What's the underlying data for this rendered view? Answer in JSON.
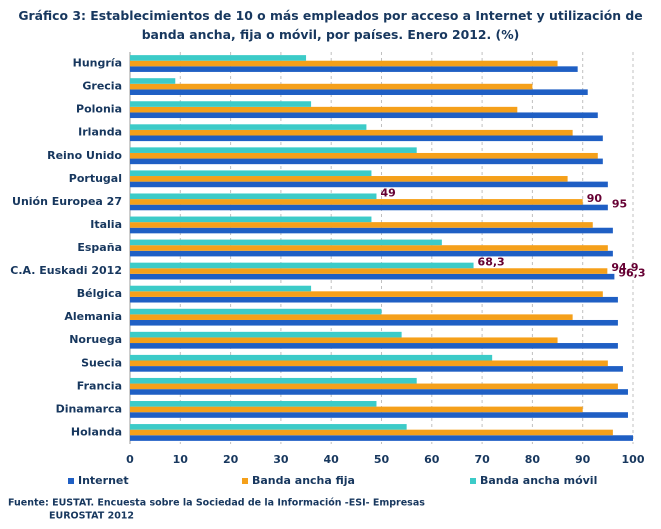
{
  "chart_data": {
    "type": "hbar",
    "title": "Gráfico 3: Establecimientos de 10 o más empleados por acceso a Internet y utilización de banda ancha, fija o móvil, por países. Enero 2012. (%)",
    "categories": [
      "Hungría",
      "Grecia",
      "Polonia",
      "Irlanda",
      "Reino Unido",
      "Portugal",
      "Unión Europea 27",
      "Italia",
      "España",
      "C.A. Euskadi 2012",
      "Bélgica",
      "Alemania",
      "Noruega",
      "Suecia",
      "Francia",
      "Dinamarca",
      "Holanda"
    ],
    "series": [
      {
        "name": "Internet",
        "color": "#1f5fc4",
        "values": [
          89,
          91,
          93,
          94,
          94,
          95,
          95,
          96,
          96,
          96.3,
          97,
          97,
          97,
          98,
          99,
          99,
          100
        ],
        "value_labels": [
          null,
          null,
          null,
          null,
          null,
          null,
          "95",
          null,
          null,
          "96,3",
          null,
          null,
          null,
          null,
          null,
          null,
          null
        ]
      },
      {
        "name": "Banda ancha fija",
        "color": "#f5a01a",
        "values": [
          85,
          80,
          77,
          88,
          93,
          87,
          90,
          92,
          95,
          94.9,
          94,
          88,
          85,
          95,
          97,
          90,
          96
        ],
        "value_labels": [
          null,
          null,
          null,
          null,
          null,
          null,
          "90",
          null,
          null,
          "94,9",
          null,
          null,
          null,
          null,
          null,
          null,
          null
        ]
      },
      {
        "name": "Banda ancha móvil",
        "color": "#3ccbc8",
        "values": [
          35,
          9,
          36,
          47,
          57,
          48,
          49,
          48,
          62,
          68.3,
          36,
          50,
          54,
          72,
          57,
          49,
          55
        ],
        "value_labels": [
          null,
          null,
          null,
          null,
          null,
          null,
          "49",
          null,
          null,
          "68,3",
          null,
          null,
          null,
          null,
          null,
          null,
          null
        ]
      }
    ],
    "xlim": [
      0,
      100
    ],
    "xticks": [
      0,
      10,
      20,
      30,
      40,
      50,
      60,
      70,
      80,
      90,
      100
    ],
    "grid": true,
    "source": [
      "Fuente: EUSTAT. Encuesta sobre la Sociedad de la Información -ESI- Empresas",
      "EUROSTAT 2012"
    ]
  }
}
